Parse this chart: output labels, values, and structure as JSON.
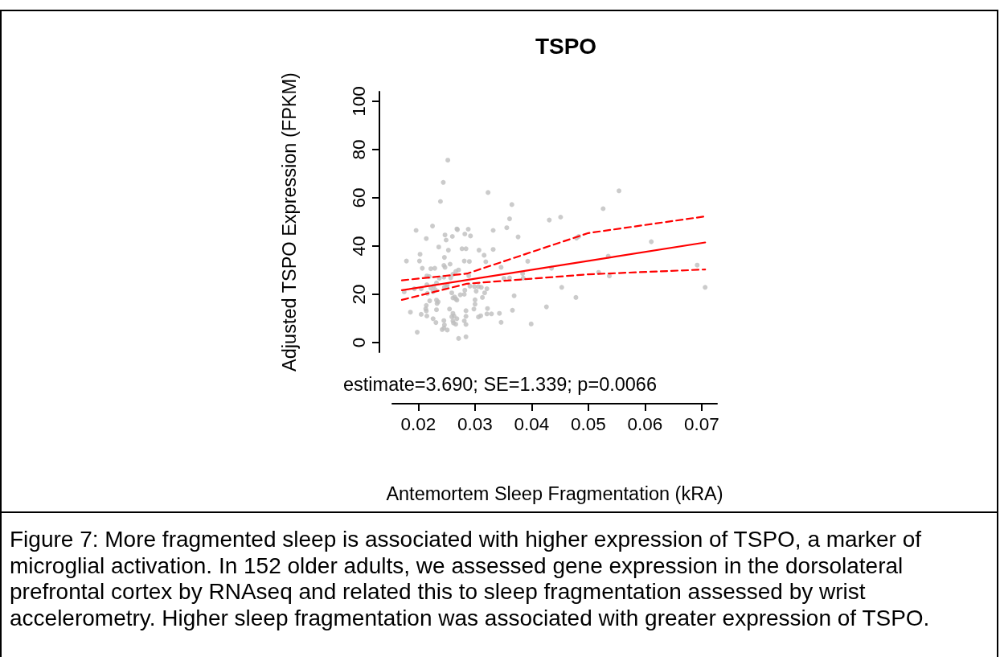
{
  "chart_data": {
    "type": "scatter",
    "title": "TSPO",
    "xlabel": "Antemortem Sleep Fragmentation (kRA)",
    "ylabel": "Adjusted TSPO Expression (FPKM)",
    "annotations": [
      "estimate=3.690; SE=1.339; p=0.0066",
      "Figure 7: More fragmented sleep is associated with higher expression of TSPO, a marker of microglial activation. In 152 older adults, we assessed gene expression in the dorsolateral prefrontal cortex by RNAseq and related this to sleep fragmentation assessed by wrist accelerometry. Higher sleep fragmentation was associated with greater expression of TSPO."
    ],
    "xlim": [
      0.0154,
      0.0727
    ],
    "xticks": [
      0.02,
      0.03,
      0.04,
      0.05,
      0.06,
      0.07
    ],
    "ylim": [
      -4,
      104
    ],
    "yticks": [
      0,
      20,
      40,
      60,
      80,
      100
    ],
    "grid": false,
    "series": [
      {
        "color": "#bebebe",
        "marker": "circle",
        "x": [
          0.0252,
          0.0244,
          0.0239,
          0.0323,
          0.0365,
          0.0361,
          0.0356,
          0.0376,
          0.0196,
          0.0225,
          0.0214,
          0.0247,
          0.0249,
          0.026,
          0.0268,
          0.0269,
          0.0288,
          0.0282,
          0.0292,
          0.0332,
          0.0236,
          0.0253,
          0.0277,
          0.0284,
          0.0307,
          0.0316,
          0.0332,
          0.0319,
          0.0203,
          0.0202,
          0.0179,
          0.0246,
          0.0207,
          0.0222,
          0.0229,
          0.0245,
          0.0247,
          0.0256,
          0.0281,
          0.029,
          0.0271,
          0.0266,
          0.0261,
          0.0257,
          0.0245,
          0.0237,
          0.0215,
          0.0219,
          0.0289,
          0.0346,
          0.0361,
          0.0351,
          0.0384,
          0.0385,
          0.0393,
          0.0232,
          0.0227,
          0.0222,
          0.0215,
          0.0205,
          0.0193,
          0.0175,
          0.023,
          0.0226,
          0.0216,
          0.0251,
          0.0246,
          0.025,
          0.0259,
          0.0282,
          0.0281,
          0.0291,
          0.0299,
          0.0306,
          0.0317,
          0.0321,
          0.0311,
          0.0302,
          0.0369,
          0.022,
          0.0232,
          0.0235,
          0.0233,
          0.0261,
          0.0266,
          0.0264,
          0.0274,
          0.0268,
          0.03,
          0.03,
          0.0313,
          0.0214,
          0.0213,
          0.0214,
          0.0232,
          0.0255,
          0.0261,
          0.0259,
          0.0263,
          0.0205,
          0.0186,
          0.0215,
          0.0298,
          0.0284,
          0.0284,
          0.0322,
          0.0321,
          0.0329,
          0.0343,
          0.0366,
          0.0226,
          0.0231,
          0.0245,
          0.0261,
          0.0268,
          0.0266,
          0.0262,
          0.0281,
          0.0284,
          0.0306,
          0.031,
          0.0346,
          0.0399,
          0.0246,
          0.0242,
          0.0251,
          0.0245,
          0.0198,
          0.0271,
          0.0284,
          0.0426,
          0.0431,
          0.0451,
          0.0526,
          0.0554,
          0.0479,
          0.0483,
          0.0611,
          0.0535,
          0.0435,
          0.0518,
          0.0537,
          0.0692,
          0.0706,
          0.0453,
          0.0478
        ],
        "values": [
          75.6,
          66.4,
          58.5,
          62.2,
          57.2,
          51.3,
          47.6,
          43.8,
          46.5,
          48.3,
          43.1,
          44.6,
          42.5,
          44.0,
          47.1,
          46.8,
          47.0,
          45.0,
          44.2,
          46.5,
          39.6,
          38.3,
          38.9,
          38.9,
          38.3,
          36.2,
          38.6,
          33.5,
          36.6,
          33.8,
          33.8,
          35.3,
          30.8,
          30.6,
          30.8,
          32.0,
          31.2,
          32.5,
          33.8,
          33.6,
          30.1,
          29.5,
          28.3,
          26.8,
          27.1,
          26.7,
          27.6,
          27.4,
          27.7,
          31.2,
          26.8,
          26.6,
          28.6,
          26.7,
          33.7,
          24.7,
          23.4,
          22.6,
          24.0,
          22.3,
          22.3,
          21.0,
          21.9,
          21.1,
          20.4,
          23.9,
          23.0,
          23.2,
          20.6,
          21.7,
          20.0,
          23.4,
          23.2,
          23.2,
          20.6,
          22.3,
          22.9,
          21.3,
          19.4,
          17.3,
          17.6,
          16.9,
          16.2,
          18.5,
          18.1,
          18.9,
          19.8,
          17.6,
          17.7,
          15.9,
          18.7,
          15.4,
          14.0,
          13.1,
          13.6,
          13.9,
          12.1,
          10.7,
          11.0,
          11.7,
          12.6,
          11.0,
          13.9,
          13.2,
          10.9,
          14.1,
          11.9,
          11.9,
          12.1,
          13.4,
          9.9,
          8.3,
          9.1,
          9.0,
          9.9,
          7.6,
          8.1,
          9.0,
          7.5,
          10.6,
          11.1,
          8.4,
          7.7,
          7.3,
          5.4,
          5.2,
          6.0,
          4.3,
          1.7,
          2.4,
          14.8,
          50.8,
          52.0,
          55.5,
          62.9,
          43.3,
          44.0,
          41.8,
          35.8,
          30.8,
          29.1,
          27.6,
          32.1,
          22.9,
          22.9,
          18.7
        ]
      },
      {
        "type": "line",
        "color": "#ff0000",
        "line_style": "solid",
        "x": [
          0.0171,
          0.0706
        ],
        "values": [
          21.7,
          41.5
        ]
      },
      {
        "type": "line",
        "color": "#ff0000",
        "line_style": "dashed",
        "x": [
          0.0171,
          0.0286,
          0.05,
          0.0706
        ],
        "values": [
          25.8,
          28.6,
          45.4,
          52.3
        ]
      },
      {
        "type": "line",
        "color": "#ff0000",
        "line_style": "dashed",
        "x": [
          0.0171,
          0.0286,
          0.05,
          0.0706
        ],
        "values": [
          17.7,
          24.4,
          28.3,
          30.3
        ]
      }
    ]
  }
}
